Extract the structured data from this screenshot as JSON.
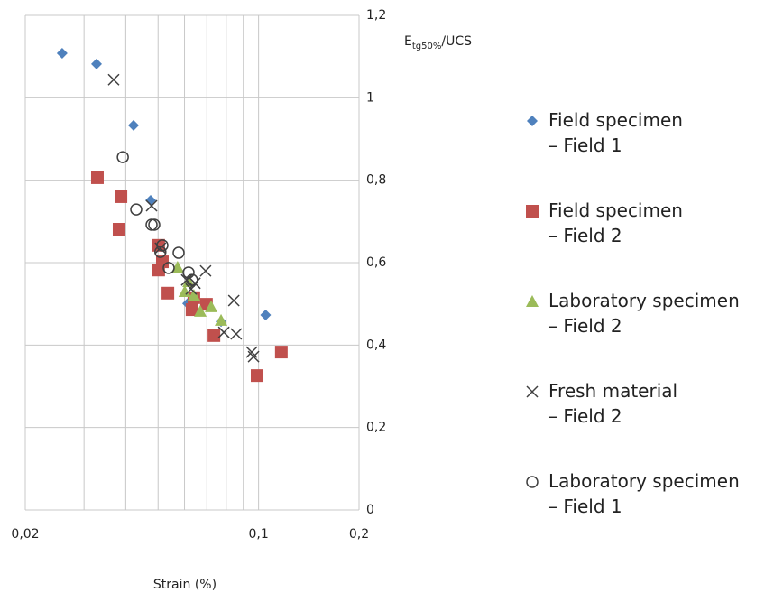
{
  "chart_data": {
    "type": "scatter",
    "xlabel": "Strain (%)",
    "ylabel_parts": [
      "E",
      "tg50%",
      "/UCS"
    ],
    "xlog": true,
    "xlim": [
      0.02,
      0.2
    ],
    "xticks": [
      {
        "value": 0.02,
        "label": "0,02"
      },
      {
        "value": 0.1,
        "label": "0,1"
      },
      {
        "value": 0.2,
        "label": "0,2"
      }
    ],
    "xgrid_minor": [
      0.03,
      0.04,
      0.05,
      0.06,
      0.07,
      0.08,
      0.09
    ],
    "ylim": [
      0,
      1.2
    ],
    "yticks": [
      0,
      {
        "value": 0.2,
        "label": "0,2"
      },
      {
        "value": 0.4,
        "label": "0,4"
      },
      {
        "value": 0.6,
        "label": "0,6"
      },
      {
        "value": 0.8,
        "label": "0,8"
      },
      1,
      {
        "value": 1.2,
        "label": "1,2"
      }
    ],
    "grid": true,
    "series": [
      {
        "name": "Field specimen\n– Field 1",
        "marker": "diamond",
        "color": "#4f81bd",
        "x": [
          0.0258,
          0.0327,
          0.0422,
          0.0475,
          0.0613,
          0.0772,
          0.105
        ],
        "values": [
          1.108,
          1.082,
          0.933,
          0.751,
          0.501,
          0.457,
          0.473
        ]
      },
      {
        "name": "Field specimen\n– Field 2",
        "marker": "square",
        "color": "#c0504d",
        "x": [
          0.0329,
          0.0387,
          0.0382,
          0.0502,
          0.0502,
          0.0515,
          0.0535,
          0.0632,
          0.064,
          0.0698,
          0.0735,
          0.099,
          0.117
        ],
        "values": [
          0.806,
          0.76,
          0.681,
          0.642,
          0.582,
          0.602,
          0.526,
          0.486,
          0.515,
          0.499,
          0.423,
          0.326,
          0.383
        ]
      },
      {
        "name": "Laboratory specimen\n– Field 2",
        "marker": "triangle",
        "color": "#9bbb59",
        "x": [
          0.0572,
          0.0601,
          0.0617,
          0.064,
          0.0669,
          0.0721,
          0.0772
        ],
        "values": [
          0.589,
          0.53,
          0.554,
          0.521,
          0.482,
          0.493,
          0.46
        ]
      },
      {
        "name": "Fresh material\n– Field 2",
        "marker": "cross",
        "color": "#404040",
        "x": [
          0.0368,
          0.0478,
          0.0508,
          0.0609,
          0.0628,
          0.0645,
          0.0694,
          0.0787,
          0.0857,
          0.0843,
          0.0954,
          0.0966
        ],
        "values": [
          1.044,
          0.738,
          0.635,
          0.558,
          0.536,
          0.55,
          0.58,
          0.431,
          0.427,
          0.508,
          0.383,
          0.372
        ]
      },
      {
        "name": "Laboratory specimen\n– Field 1",
        "marker": "circle",
        "color": "#404040",
        "x": [
          0.0392,
          0.043,
          0.0478,
          0.0487,
          0.0508,
          0.0515,
          0.0538,
          0.0576,
          0.0617,
          0.0632
        ],
        "values": [
          0.856,
          0.729,
          0.692,
          0.692,
          0.626,
          0.642,
          0.587,
          0.624,
          0.576,
          0.558
        ]
      }
    ]
  }
}
